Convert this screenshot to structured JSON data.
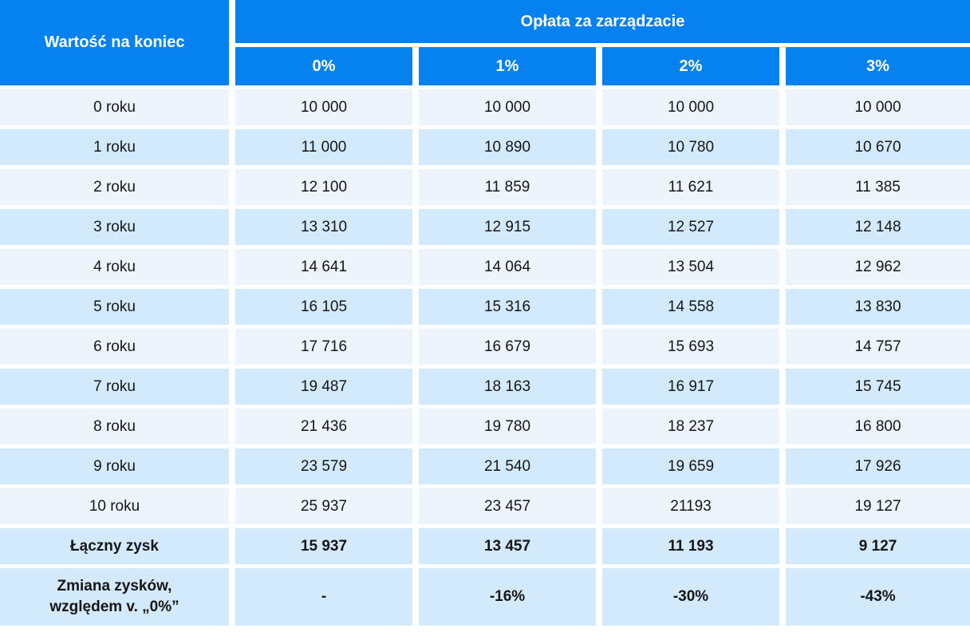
{
  "chart_data": {
    "type": "table",
    "corner_header": "Wartość na koniec",
    "group_header": "Opłata za zarządzacie",
    "columns": [
      "0%",
      "1%",
      "2%",
      "3%"
    ],
    "rows": [
      {
        "label": "0 roku",
        "values": [
          "10 000",
          "10 000",
          "10 000",
          "10 000"
        ]
      },
      {
        "label": "1 roku",
        "values": [
          "11 000",
          "10 890",
          "10 780",
          "10 670"
        ]
      },
      {
        "label": "2 roku",
        "values": [
          "12 100",
          "11 859",
          "11 621",
          "11 385"
        ]
      },
      {
        "label": "3 roku",
        "values": [
          "13 310",
          "12 915",
          "12 527",
          "12 148"
        ]
      },
      {
        "label": "4 roku",
        "values": [
          "14 641",
          "14 064",
          "13 504",
          "12 962"
        ]
      },
      {
        "label": "5 roku",
        "values": [
          "16 105",
          "15 316",
          "14 558",
          "13 830"
        ]
      },
      {
        "label": "6 roku",
        "values": [
          "17 716",
          "16 679",
          "15 693",
          "14 757"
        ]
      },
      {
        "label": "7 roku",
        "values": [
          "19 487",
          "18 163",
          "16 917",
          "15 745"
        ]
      },
      {
        "label": "8 roku",
        "values": [
          "21 436",
          "19 780",
          "18 237",
          "16 800"
        ]
      },
      {
        "label": "9 roku",
        "values": [
          "23 579",
          "21 540",
          "19 659",
          "17 926"
        ]
      },
      {
        "label": "10 roku",
        "values": [
          "25 937",
          "23 457",
          "21193",
          "19 127"
        ]
      }
    ],
    "summary": [
      {
        "label": "Łączny zysk",
        "values": [
          "15 937",
          "13 457",
          "11 193",
          "9 127"
        ]
      },
      {
        "label": "Zmiana zysków,\nwzględem v. „0%”",
        "values": [
          "-",
          "-16%",
          "-30%",
          "-43%"
        ]
      }
    ]
  },
  "colors": {
    "header_blue": "#0581F0",
    "header_text": "#FFFFFF",
    "row_light": "#EDF4FB",
    "row_dark": "#D3E9FC",
    "body_text": "#161616",
    "gap_white": "#FFFFFF"
  }
}
